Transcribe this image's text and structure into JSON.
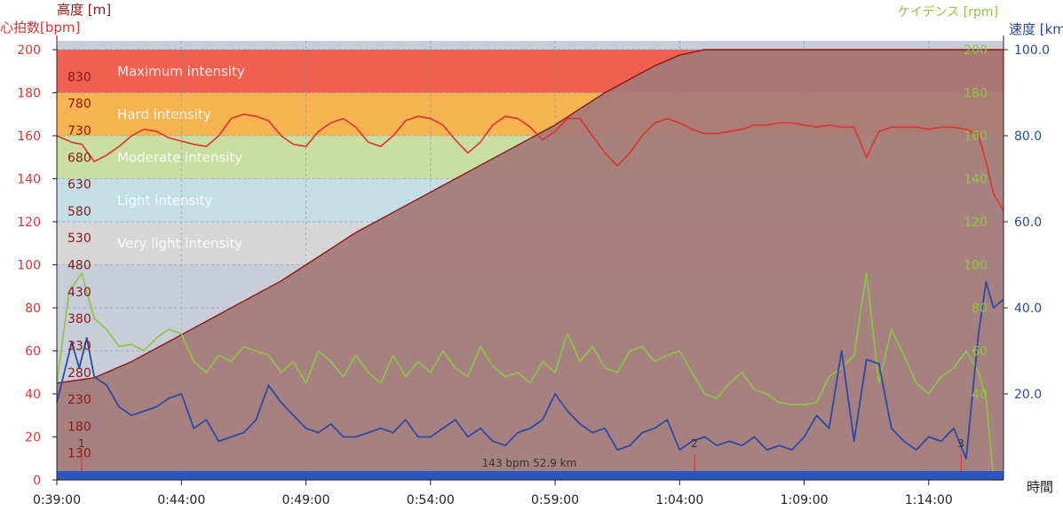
{
  "header": {
    "hr_title": "心拍数[bpm]",
    "alt_title": "高度 [m]",
    "cad_title": "ケイデンス [rpm]",
    "spd_title": "速度 [km",
    "time_title": "時間"
  },
  "summary_label": "143 bpm 52.9 km",
  "colors": {
    "heart_rate": "#e03030",
    "altitude_fill": "#a47a78",
    "altitude_line": "#8a1818",
    "cadence": "#8cc63f",
    "speed": "#2b4aa8",
    "plot_bg": "#c8cdd8",
    "bottom_bar": "#2b55c0"
  },
  "zones": [
    {
      "label": "Maximum intensity",
      "min": 180,
      "max": 200,
      "color": "#f06050"
    },
    {
      "label": "Hard intensity",
      "min": 160,
      "max": 180,
      "color": "#f6b450"
    },
    {
      "label": "Moderate intensity",
      "min": 140,
      "max": 160,
      "color": "#cadea2"
    },
    {
      "label": "Light intensity",
      "min": 120,
      "max": 140,
      "color": "#c4dee6"
    },
    {
      "label": "Very light intensity",
      "min": 100,
      "max": 120,
      "color": "#d6d6d6"
    }
  ],
  "chart_data": {
    "type": "line",
    "x_unit": "time (h:mm:ss)",
    "xlim": [
      "0:39:00",
      "1:17:00"
    ],
    "x_ticks": [
      "0:39:00",
      "0:44:00",
      "0:49:00",
      "0:54:00",
      "0:59:00",
      "1:04:00",
      "1:09:00",
      "1:14:00"
    ],
    "axes": {
      "heart_rate": {
        "ylim": [
          0,
          200
        ],
        "ticks": [
          "0",
          "20",
          "40",
          "60",
          "80",
          "100",
          "120",
          "140",
          "160",
          "180",
          "200"
        ]
      },
      "altitude": {
        "ylim": [
          80,
          880
        ],
        "ticks": [
          "130",
          "180",
          "230",
          "280",
          "330",
          "380",
          "430",
          "480",
          "530",
          "580",
          "630",
          "680",
          "730",
          "780",
          "830"
        ]
      },
      "cadence": {
        "ylim": [
          0,
          200
        ],
        "ticks": [
          "40",
          "60",
          "80",
          "100",
          "120",
          "140",
          "160",
          "180",
          "200"
        ]
      },
      "speed": {
        "ylim": [
          0,
          100
        ],
        "ticks": [
          "20.0",
          "40.0",
          "60.0",
          "80.0",
          "100.0"
        ]
      }
    },
    "laps": [
      {
        "label": "1",
        "t": 1.0
      },
      {
        "label": "2",
        "t": 25.6
      },
      {
        "label": "3",
        "t": 36.3
      }
    ],
    "series": [
      {
        "key": "heart_rate",
        "axis": "heart_rate",
        "t": [
          0,
          0.6,
          1.0,
          1.5,
          2.0,
          2.5,
          3.0,
          3.5,
          4.0,
          4.5,
          5.5,
          6.0,
          6.5,
          7.0,
          7.5,
          8.0,
          8.5,
          9.0,
          9.5,
          10.0,
          10.5,
          11.0,
          11.5,
          12.0,
          12.5,
          13.0,
          13.5,
          14.0,
          14.5,
          15.0,
          15.5,
          16.0,
          16.5,
          17.0,
          17.5,
          18.0,
          18.5,
          19.0,
          19.5,
          20.0,
          20.5,
          21.0,
          21.5,
          22.0,
          22.5,
          23.0,
          23.5,
          24.0,
          24.5,
          25.0,
          25.5,
          26.0,
          26.5,
          27.0,
          27.5,
          28.0,
          28.5,
          29.0,
          29.5,
          30.0,
          30.5,
          31.0,
          31.5,
          32.0,
          32.5,
          33.0,
          33.5,
          34.0,
          34.5,
          35.0,
          35.5,
          36.0,
          36.5,
          37.0,
          37.3,
          37.6,
          38.0
        ],
        "values": [
          160,
          157,
          156,
          148,
          151,
          155,
          160,
          163,
          162,
          159,
          156,
          155,
          160,
          168,
          170,
          169,
          167,
          160,
          156,
          155,
          162,
          166,
          168,
          164,
          157,
          155,
          160,
          167,
          169,
          168,
          165,
          158,
          152,
          157,
          165,
          169,
          168,
          164,
          158,
          162,
          168,
          168,
          160,
          152,
          146,
          152,
          160,
          166,
          168,
          166,
          163,
          161,
          161,
          162,
          163,
          165,
          165,
          166,
          166,
          165,
          164,
          165,
          164,
          164,
          150,
          162,
          164,
          164,
          164,
          163,
          164,
          164,
          163,
          160,
          148,
          133,
          125
        ]
      },
      {
        "key": "altitude",
        "axis": "altitude",
        "t": [
          0,
          1.5,
          3.0,
          5.0,
          7.0,
          9.0,
          10.0,
          12.0,
          14.0,
          16.0,
          18.0,
          20.0,
          22.0,
          24.0,
          25.0,
          26.0,
          28.0,
          30.0,
          32.0,
          33.0,
          34.0,
          35.0,
          36.0,
          36.5,
          37.0,
          37.5,
          38.0
        ],
        "values": [
          260,
          270,
          300,
          350,
          400,
          450,
          480,
          540,
          590,
          640,
          690,
          740,
          800,
          850,
          870,
          895,
          960,
          1010,
          1070,
          1110,
          1130,
          1150,
          1180,
          1195,
          1210,
          1200,
          1190
        ]
      },
      {
        "key": "cadence",
        "axis": "cadence",
        "t": [
          0,
          0.5,
          1.0,
          1.5,
          2.0,
          2.5,
          3.0,
          3.5,
          4.0,
          4.5,
          5.0,
          5.5,
          6.0,
          6.5,
          7.0,
          7.5,
          8.0,
          8.5,
          9.0,
          9.5,
          10.0,
          10.5,
          11.0,
          11.5,
          12.0,
          12.5,
          13.0,
          13.5,
          14.0,
          14.5,
          15.0,
          15.5,
          16.0,
          16.5,
          17.0,
          17.5,
          18.0,
          18.5,
          19.0,
          19.5,
          20.0,
          20.5,
          21.0,
          21.5,
          22.0,
          22.5,
          23.0,
          23.5,
          24.0,
          24.5,
          25.0,
          25.5,
          26.0,
          26.5,
          27.0,
          27.5,
          28.0,
          28.5,
          29.0,
          29.5,
          30.0,
          30.5,
          31.0,
          31.5,
          32.0,
          32.5,
          33.0,
          33.5,
          34.0,
          34.5,
          35.0,
          35.5,
          36.0,
          36.5,
          37.0,
          37.3,
          37.6,
          38.0
        ],
        "values": [
          45,
          88,
          96,
          75,
          70,
          62,
          63,
          60,
          66,
          70,
          68,
          55,
          50,
          58,
          55,
          62,
          60,
          58,
          50,
          55,
          45,
          60,
          55,
          48,
          58,
          50,
          45,
          58,
          48,
          55,
          50,
          60,
          52,
          48,
          62,
          53,
          48,
          50,
          45,
          55,
          50,
          68,
          55,
          62,
          52,
          50,
          60,
          62,
          55,
          58,
          60,
          50,
          40,
          38,
          45,
          50,
          42,
          40,
          36,
          35,
          35,
          36,
          48,
          52,
          58,
          96,
          45,
          70,
          58,
          45,
          40,
          48,
          52,
          60,
          50,
          38,
          0,
          0
        ]
      },
      {
        "key": "speed",
        "axis": "speed",
        "t": [
          0,
          0.3,
          0.6,
          0.9,
          1.2,
          1.5,
          2.0,
          2.5,
          3.0,
          3.5,
          4.0,
          4.5,
          5.0,
          5.5,
          6.0,
          6.5,
          7.0,
          7.5,
          8.0,
          8.5,
          9.0,
          9.5,
          10.0,
          10.5,
          11.0,
          11.5,
          12.0,
          12.5,
          13.0,
          13.5,
          14.0,
          14.5,
          15.0,
          15.5,
          16.0,
          16.5,
          17.0,
          17.5,
          18.0,
          18.5,
          19.0,
          19.5,
          20.0,
          20.5,
          21.0,
          21.5,
          22.0,
          22.5,
          23.0,
          23.5,
          24.0,
          24.5,
          25.0,
          25.5,
          26.0,
          26.5,
          27.0,
          27.5,
          28.0,
          28.5,
          29.0,
          29.5,
          30.0,
          30.5,
          31.0,
          31.5,
          32.0,
          32.5,
          33.0,
          33.5,
          34.0,
          34.5,
          35.0,
          35.5,
          36.0,
          36.5,
          37.0,
          37.3,
          37.6,
          38.0
        ],
        "values": [
          18,
          25,
          32,
          26,
          33,
          24,
          22,
          17,
          15,
          16,
          17,
          19,
          20,
          12,
          14,
          9,
          10,
          11,
          14,
          22,
          18,
          15,
          12,
          11,
          13,
          10,
          10,
          11,
          12,
          11,
          14,
          10,
          10,
          12,
          14,
          10,
          12,
          9,
          8,
          11,
          12,
          14,
          20,
          16,
          13,
          11,
          12,
          7,
          8,
          11,
          12,
          14,
          7,
          9,
          10,
          8,
          9,
          8,
          10,
          7,
          8,
          7,
          10,
          15,
          12,
          30,
          9,
          28,
          27,
          12,
          9,
          7,
          10,
          9,
          12,
          5,
          34,
          46,
          40,
          42
        ]
      }
    ]
  }
}
